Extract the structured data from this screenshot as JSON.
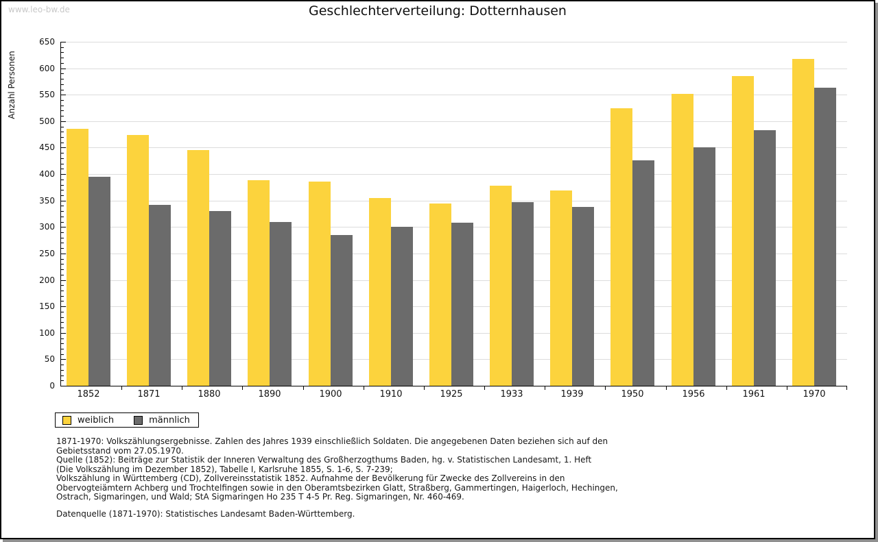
{
  "page": {
    "watermark": "www.leo-bw.de",
    "title": "Geschlechterverteilung: Dotternhausen"
  },
  "chart_data": {
    "type": "bar",
    "title": "Geschlechterverteilung: Dotternhausen",
    "xlabel": "",
    "ylabel": "Anzahl Personen",
    "ylim": [
      0,
      650
    ],
    "ytick_major": 50,
    "ytick_minor": 10,
    "grid": true,
    "legend_position": "bottom-left",
    "categories": [
      "1852",
      "1871",
      "1880",
      "1890",
      "1900",
      "1910",
      "1925",
      "1933",
      "1939",
      "1950",
      "1956",
      "1961",
      "1970"
    ],
    "series": [
      {
        "name": "weiblich",
        "color": "#FCD33D",
        "values": [
          486,
          474,
          446,
          388,
          386,
          355,
          344,
          378,
          369,
          525,
          552,
          585,
          618
        ]
      },
      {
        "name": "männlich",
        "color": "#6B6B6B",
        "values": [
          395,
          342,
          330,
          309,
          285,
          300,
          308,
          347,
          338,
          426,
          450,
          483,
          563
        ]
      }
    ]
  },
  "footnotes": {
    "lines": [
      "1871-1970: Volkszählungsergebnisse. Zahlen des Jahres 1939 einschließlich Soldaten. Die angegebenen Daten beziehen sich auf den",
      "Gebietsstand vom 27.05.1970.",
      "Quelle (1852): Beiträge zur Statistik der Inneren Verwaltung des Großherzogthums Baden, hg. v. Statistischen Landesamt, 1. Heft",
      "(Die Volkszählung im Dezember 1852), Tabelle I, Karlsruhe 1855, S. 1-6, S. 7-239;",
      "Volkszählung in Württemberg (CD), Zollvereinsstatistik 1852. Aufnahme der Bevölkerung für Zwecke des Zollvereins in den",
      "Obervogteiämtern Achberg und Trochtelfingen sowie in den Oberamtsbezirken Glatt, Straßberg, Gammertingen, Haigerloch, Hechingen,",
      "Ostrach, Sigmaringen, und Wald; StA Sigmaringen Ho 235 T 4-5 Pr. Reg. Sigmaringen, Nr. 460-469."
    ],
    "datasource": "Datenquelle (1871-1970): Statistisches Landesamt Baden-Württemberg."
  },
  "colors": {
    "bar_female": "#FCD33D",
    "bar_male": "#6B6B6B",
    "gridline": "#DCDCDC",
    "axis": "#000000",
    "watermark": "#C8C8C8",
    "shadow": "#8F8F8F"
  }
}
